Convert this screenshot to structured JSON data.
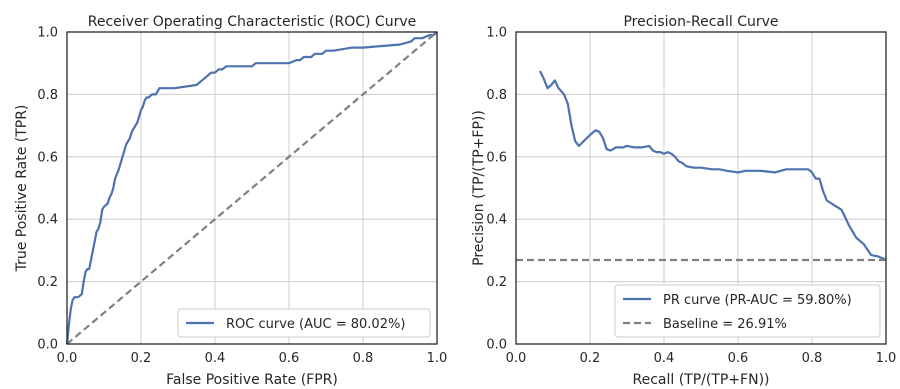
{
  "chart_data": [
    {
      "type": "line",
      "title": "Receiver Operating Characteristic (ROC) Curve",
      "xlabel": "False Positive Rate (FPR)",
      "ylabel": "True Positive Rate (TPR)",
      "xlim": [
        0,
        1
      ],
      "ylim": [
        0,
        1
      ],
      "xticks": [
        "0.0",
        "0.2",
        "0.4",
        "0.6",
        "0.8",
        "1.0"
      ],
      "yticks": [
        "0.0",
        "0.2",
        "0.4",
        "0.6",
        "0.8",
        "1.0"
      ],
      "grid": true,
      "legend_position": "lower-right",
      "series": [
        {
          "name": "ROC curve (AUC = 80.02%)",
          "color": "#4c72b0",
          "style": "solid",
          "x": [
            0.0,
            0.005,
            0.01,
            0.015,
            0.02,
            0.03,
            0.04,
            0.045,
            0.05,
            0.055,
            0.06,
            0.065,
            0.07,
            0.08,
            0.085,
            0.09,
            0.095,
            0.1,
            0.11,
            0.115,
            0.12,
            0.125,
            0.13,
            0.14,
            0.145,
            0.15,
            0.16,
            0.17,
            0.175,
            0.18,
            0.19,
            0.195,
            0.2,
            0.205,
            0.21,
            0.215,
            0.22,
            0.23,
            0.24,
            0.25,
            0.26,
            0.29,
            0.35,
            0.36,
            0.37,
            0.38,
            0.39,
            0.4,
            0.41,
            0.42,
            0.43,
            0.5,
            0.51,
            0.52,
            0.6,
            0.62,
            0.63,
            0.64,
            0.66,
            0.67,
            0.69,
            0.7,
            0.72,
            0.77,
            0.8,
            0.9,
            0.9,
            0.93,
            0.94,
            0.96,
            0.98,
            0.99,
            1.0
          ],
          "y": [
            0.0,
            0.06,
            0.11,
            0.14,
            0.15,
            0.15,
            0.16,
            0.2,
            0.23,
            0.24,
            0.24,
            0.27,
            0.3,
            0.36,
            0.37,
            0.39,
            0.43,
            0.44,
            0.45,
            0.47,
            0.48,
            0.5,
            0.53,
            0.56,
            0.58,
            0.6,
            0.64,
            0.66,
            0.68,
            0.69,
            0.71,
            0.73,
            0.75,
            0.76,
            0.78,
            0.79,
            0.79,
            0.8,
            0.8,
            0.82,
            0.82,
            0.82,
            0.83,
            0.84,
            0.85,
            0.86,
            0.87,
            0.87,
            0.88,
            0.88,
            0.89,
            0.89,
            0.9,
            0.9,
            0.9,
            0.91,
            0.91,
            0.92,
            0.92,
            0.93,
            0.93,
            0.94,
            0.94,
            0.95,
            0.95,
            0.96,
            0.96,
            0.97,
            0.98,
            0.98,
            0.99,
            0.99,
            1.0
          ]
        },
        {
          "name": "",
          "color": "#808080",
          "style": "dashed",
          "x": [
            0,
            1
          ],
          "y": [
            0,
            1
          ]
        }
      ]
    },
    {
      "type": "line",
      "title": "Precision-Recall Curve",
      "xlabel": "Recall (TP/(TP+FN))",
      "ylabel": "Precision (TP/(TP+FP))",
      "xlim": [
        0,
        1
      ],
      "ylim": [
        0,
        1
      ],
      "xticks": [
        "0.0",
        "0.2",
        "0.4",
        "0.6",
        "0.8",
        "1.0"
      ],
      "yticks": [
        "0.0",
        "0.2",
        "0.4",
        "0.6",
        "0.8",
        "1.0"
      ],
      "grid": true,
      "legend_position": "lower-right",
      "series": [
        {
          "name": "PR curve (PR-AUC = 59.80%)",
          "color": "#4c72b0",
          "style": "solid",
          "x": [
            0.065,
            0.075,
            0.085,
            0.095,
            0.105,
            0.115,
            0.13,
            0.14,
            0.15,
            0.16,
            0.17,
            0.2,
            0.215,
            0.225,
            0.235,
            0.245,
            0.255,
            0.27,
            0.29,
            0.3,
            0.32,
            0.34,
            0.36,
            0.37,
            0.38,
            0.39,
            0.4,
            0.41,
            0.42,
            0.43,
            0.44,
            0.45,
            0.46,
            0.48,
            0.5,
            0.53,
            0.55,
            0.57,
            0.6,
            0.62,
            0.66,
            0.7,
            0.73,
            0.76,
            0.79,
            0.8,
            0.81,
            0.82,
            0.83,
            0.84,
            0.86,
            0.88,
            0.9,
            0.92,
            0.94,
            0.96,
            0.98,
            1.0
          ],
          "y": [
            0.875,
            0.85,
            0.82,
            0.83,
            0.845,
            0.82,
            0.8,
            0.77,
            0.7,
            0.65,
            0.635,
            0.67,
            0.685,
            0.68,
            0.66,
            0.625,
            0.62,
            0.63,
            0.63,
            0.635,
            0.63,
            0.63,
            0.635,
            0.62,
            0.615,
            0.615,
            0.61,
            0.615,
            0.61,
            0.6,
            0.585,
            0.58,
            0.57,
            0.565,
            0.565,
            0.56,
            0.56,
            0.555,
            0.55,
            0.555,
            0.555,
            0.55,
            0.56,
            0.56,
            0.56,
            0.55,
            0.53,
            0.53,
            0.49,
            0.46,
            0.445,
            0.43,
            0.38,
            0.34,
            0.32,
            0.285,
            0.28,
            0.27
          ]
        },
        {
          "name": "Baseline = 26.91%",
          "color": "#808080",
          "style": "dashed",
          "x": [
            0,
            1
          ],
          "y": [
            0.2691,
            0.2691
          ]
        }
      ]
    }
  ]
}
